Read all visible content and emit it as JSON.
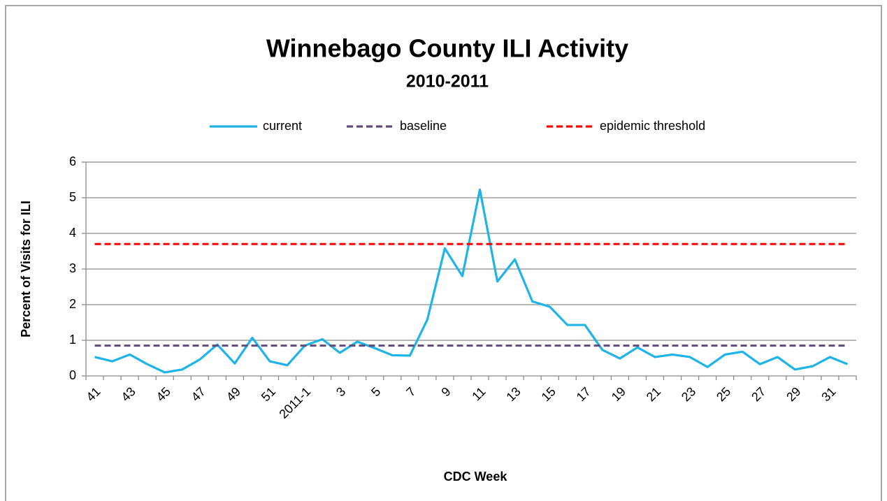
{
  "chart_data": {
    "type": "line",
    "title": "Winnebago County ILI Activity",
    "subtitle": "2010-2011",
    "x_label": "CDC Week",
    "y_label": "Percent of Visits for ILI",
    "categories": [
      "41",
      null,
      "43",
      null,
      "45",
      null,
      "47",
      null,
      "49",
      null,
      "51",
      null,
      "2011-1",
      null,
      "3",
      null,
      "5",
      null,
      "7",
      null,
      "9",
      null,
      "11",
      null,
      "13",
      null,
      "15",
      null,
      "17",
      null,
      "19",
      null,
      "21",
      null,
      "23",
      null,
      "25",
      null,
      "27",
      null,
      "29",
      null,
      "31",
      null
    ],
    "series": [
      {
        "name": "current",
        "color": "#1fb4e8",
        "dash": "solid",
        "values": [
          0.53,
          0.41,
          0.6,
          0.33,
          0.1,
          0.18,
          0.46,
          0.88,
          0.35,
          1.07,
          0.41,
          0.3,
          0.85,
          1.03,
          0.65,
          0.96,
          0.78,
          0.58,
          0.57,
          1.58,
          3.58,
          2.8,
          5.23,
          2.65,
          3.27,
          2.09,
          1.94,
          1.43,
          1.43,
          0.73,
          0.49,
          0.8,
          0.53,
          0.6,
          0.53,
          0.25,
          0.6,
          0.68,
          0.33,
          0.53,
          0.18,
          0.27,
          0.53,
          0.33
        ]
      },
      {
        "name": "baseline",
        "color": "#604a7b",
        "dash": "dashed",
        "values": [
          0.85,
          0.85,
          0.85,
          0.85,
          0.85,
          0.85,
          0.85,
          0.85,
          0.85,
          0.85,
          0.85,
          0.85,
          0.85,
          0.85,
          0.85,
          0.85,
          0.85,
          0.85,
          0.85,
          0.85,
          0.85,
          0.85,
          0.85,
          0.85,
          0.85,
          0.85,
          0.85,
          0.85,
          0.85,
          0.85,
          0.85,
          0.85,
          0.85,
          0.85,
          0.85,
          0.85,
          0.85,
          0.85,
          0.85,
          0.85,
          0.85,
          0.85,
          0.85,
          0.85
        ]
      },
      {
        "name": "epidemic threshold",
        "color": "#ff0000",
        "dash": "dashed",
        "values": [
          3.7,
          3.7,
          3.7,
          3.7,
          3.7,
          3.7,
          3.7,
          3.7,
          3.7,
          3.7,
          3.7,
          3.7,
          3.7,
          3.7,
          3.7,
          3.7,
          3.7,
          3.7,
          3.7,
          3.7,
          3.7,
          3.7,
          3.7,
          3.7,
          3.7,
          3.7,
          3.7,
          3.7,
          3.7,
          3.7,
          3.7,
          3.7,
          3.7,
          3.7,
          3.7,
          3.7,
          3.7,
          3.7,
          3.7,
          3.7,
          3.7,
          3.7,
          3.7,
          3.7
        ]
      }
    ],
    "ylim": [
      0,
      6
    ],
    "yticks": [
      0,
      1,
      2,
      3,
      4,
      5,
      6
    ],
    "grid": true,
    "legend": "top"
  }
}
